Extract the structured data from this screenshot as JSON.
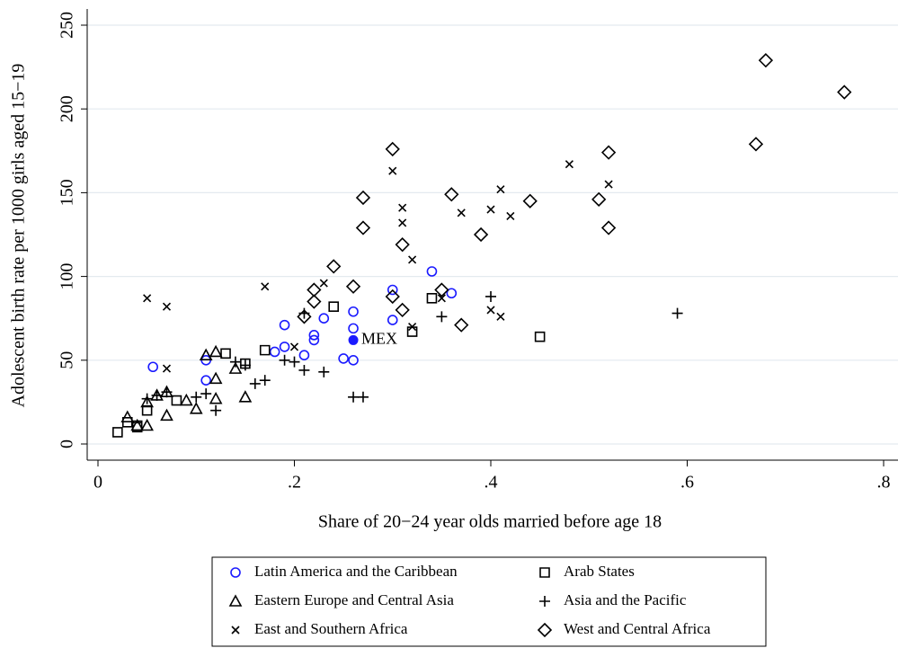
{
  "chart_data": {
    "type": "scatter",
    "x_label": "Share of 20−24 year olds married before age 18",
    "y_label": "Adolescent birth rate per 1000 girls aged 15−19",
    "xlim": [
      0,
      0.8
    ],
    "ylim": [
      0,
      250
    ],
    "xticks": [
      0,
      {
        "value": 0.2,
        "label": ".2"
      },
      {
        "value": 0.4,
        "label": ".4"
      },
      {
        "value": 0.6,
        "label": ".6"
      },
      {
        "value": 0.8,
        "label": ".8"
      }
    ],
    "yticks": [
      0,
      50,
      100,
      150,
      200,
      250
    ],
    "grid": true,
    "legend": "bottom",
    "series": [
      {
        "name": "Latin America and the Caribbean",
        "color": "#1a1aff",
        "marker": "circle",
        "x": [
          0.056,
          0.11,
          0.11,
          0.19,
          0.19,
          0.18,
          0.22,
          0.22,
          0.23,
          0.21,
          0.26,
          0.26,
          0.25,
          0.26,
          0.3,
          0.3,
          0.34,
          0.36
        ],
        "values": [
          46,
          50,
          38,
          71,
          58,
          55,
          65,
          62,
          75,
          53,
          79,
          69,
          51,
          50,
          92,
          74,
          103,
          90
        ]
      },
      {
        "name": "Arab States",
        "color": "#000000",
        "marker": "square",
        "x": [
          0.02,
          0.03,
          0.04,
          0.04,
          0.05,
          0.08,
          0.13,
          0.15,
          0.17,
          0.24,
          0.32,
          0.34,
          0.45
        ],
        "values": [
          7,
          13,
          10,
          11,
          20,
          26,
          54,
          48,
          56,
          82,
          67,
          87,
          64
        ]
      },
      {
        "name": "Eastern Europe and Central Asia",
        "color": "#000000",
        "marker": "triangle",
        "x": [
          0.03,
          0.04,
          0.05,
          0.05,
          0.06,
          0.07,
          0.07,
          0.09,
          0.1,
          0.11,
          0.12,
          0.12,
          0.12,
          0.14,
          0.15
        ],
        "values": [
          16,
          11,
          11,
          25,
          29,
          31,
          17,
          26,
          21,
          53,
          55,
          39,
          27,
          45,
          28
        ]
      },
      {
        "name": "Asia and the Pacific",
        "color": "#000000",
        "marker": "plus",
        "x": [
          0.05,
          0.06,
          0.07,
          0.1,
          0.11,
          0.12,
          0.14,
          0.15,
          0.16,
          0.17,
          0.19,
          0.2,
          0.21,
          0.23,
          0.26,
          0.27,
          0.35,
          0.4,
          0.59,
          0.21
        ],
        "values": [
          27,
          29,
          31,
          28,
          30,
          20,
          49,
          47,
          36,
          38,
          50,
          49,
          44,
          43,
          28,
          28,
          76,
          88,
          78,
          78
        ]
      },
      {
        "name": "East and Southern Africa",
        "color": "#000000",
        "marker": "x",
        "x": [
          0.05,
          0.07,
          0.07,
          0.17,
          0.2,
          0.23,
          0.3,
          0.31,
          0.31,
          0.32,
          0.32,
          0.37,
          0.4,
          0.41,
          0.42,
          0.48,
          0.52,
          0.4,
          0.41,
          0.35
        ],
        "values": [
          87,
          82,
          45,
          94,
          58,
          96,
          163,
          141,
          132,
          110,
          70,
          138,
          140,
          152,
          136,
          167,
          155,
          80,
          76,
          87
        ]
      },
      {
        "name": "West and Central Africa",
        "color": "#000000",
        "marker": "diamond",
        "x": [
          0.21,
          0.22,
          0.22,
          0.24,
          0.26,
          0.27,
          0.27,
          0.3,
          0.3,
          0.31,
          0.31,
          0.35,
          0.36,
          0.37,
          0.39,
          0.44,
          0.51,
          0.52,
          0.52,
          0.67,
          0.68,
          0.76
        ],
        "values": [
          76,
          92,
          85,
          106,
          94,
          147,
          129,
          176,
          88,
          80,
          119,
          92,
          149,
          71,
          125,
          145,
          146,
          174,
          129,
          179,
          229,
          210
        ]
      }
    ],
    "annotations": [
      {
        "text": "MEX",
        "x": 0.26,
        "y": 62,
        "color": "#1a1aff"
      }
    ]
  }
}
